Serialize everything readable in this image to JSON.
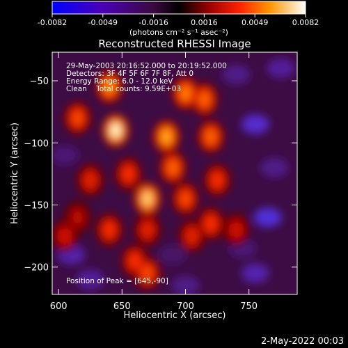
{
  "chart_data": {
    "type": "heatmap",
    "title": "Reconstructed RHESSI Image",
    "xlabel": "Heliocentric X (arcsec)",
    "ylabel": "Heliocentric Y (arcsec)",
    "xlim": [
      595,
      788
    ],
    "ylim": [
      -222,
      -27
    ],
    "x_ticks": [
      600,
      650,
      700,
      750
    ],
    "y_ticks": [
      -50,
      -100,
      -150,
      -200
    ],
    "colorbar": {
      "min": -0.0082,
      "max": 0.0082,
      "ticks": [
        "-0.0082",
        "-0.0049",
        "-0.0016",
        "0.0016",
        "0.0049",
        "0.0082"
      ],
      "units_label": "(photons cm⁻² s⁻¹ asec⁻²)"
    },
    "annotations": {
      "time_range": "29-May-2003 20:16:52.000 to 20:19:52.000",
      "detectors": "Detectors: 3F 4F 5F 6F 7F 8F, Att 0",
      "energy_range": "Energy Range: 6.0 - 12.0 keV",
      "method_counts": "Clean    Total counts: 9.59E+03",
      "peak": "Position of Peak = [645,-90]"
    },
    "bright_sources": [
      {
        "x": 645,
        "y": -90,
        "value": 0.0082
      },
      {
        "x": 670,
        "y": -145,
        "value": 0.0075
      },
      {
        "x": 685,
        "y": -95,
        "value": 0.0068
      },
      {
        "x": 640,
        "y": -55,
        "value": 0.0062
      },
      {
        "x": 700,
        "y": -60,
        "value": 0.006
      },
      {
        "x": 715,
        "y": -65,
        "value": 0.0055
      },
      {
        "x": 720,
        "y": -95,
        "value": 0.0055
      },
      {
        "x": 615,
        "y": -80,
        "value": 0.005
      },
      {
        "x": 690,
        "y": -120,
        "value": 0.0055
      },
      {
        "x": 700,
        "y": -145,
        "value": 0.005
      },
      {
        "x": 655,
        "y": -125,
        "value": 0.0045
      },
      {
        "x": 625,
        "y": -130,
        "value": 0.004
      },
      {
        "x": 725,
        "y": -130,
        "value": 0.0045
      },
      {
        "x": 640,
        "y": -170,
        "value": 0.0045
      },
      {
        "x": 670,
        "y": -170,
        "value": 0.004
      },
      {
        "x": 705,
        "y": -175,
        "value": 0.004
      },
      {
        "x": 720,
        "y": -165,
        "value": 0.0045
      },
      {
        "x": 660,
        "y": -195,
        "value": 0.0045
      },
      {
        "x": 670,
        "y": -205,
        "value": 0.005
      },
      {
        "x": 740,
        "y": -170,
        "value": 0.0035
      },
      {
        "x": 605,
        "y": -175,
        "value": 0.0035
      },
      {
        "x": 615,
        "y": -160,
        "value": 0.003
      }
    ],
    "dark_regions": [
      {
        "x": 755,
        "y": -85,
        "value": -0.006
      },
      {
        "x": 765,
        "y": -160,
        "value": -0.0065
      },
      {
        "x": 755,
        "y": -205,
        "value": -0.005
      },
      {
        "x": 610,
        "y": -190,
        "value": -0.005
      },
      {
        "x": 625,
        "y": -210,
        "value": -0.0045
      },
      {
        "x": 700,
        "y": -215,
        "value": -0.004
      },
      {
        "x": 775,
        "y": -40,
        "value": -0.0045
      },
      {
        "x": 740,
        "y": -45,
        "value": -0.004
      },
      {
        "x": 605,
        "y": -110,
        "value": -0.0035
      },
      {
        "x": 770,
        "y": -120,
        "value": -0.004
      },
      {
        "x": 745,
        "y": -185,
        "value": -0.0035
      },
      {
        "x": 690,
        "y": -190,
        "value": -0.003
      }
    ]
  },
  "footer": {
    "date_stamp": "2-May-2022 00:03"
  }
}
